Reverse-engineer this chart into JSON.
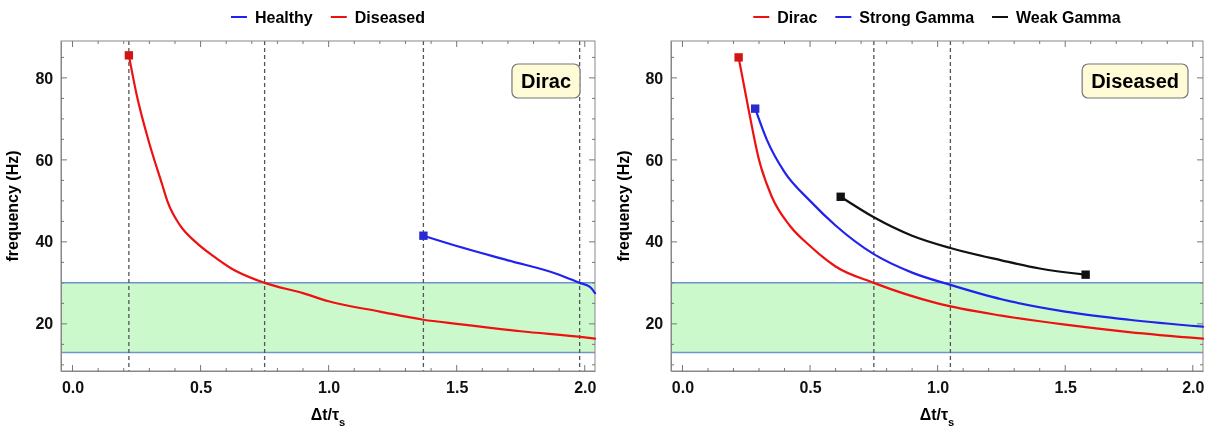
{
  "chart_data": [
    {
      "type": "line",
      "xlabel": "Δt/τ$_{s}$",
      "ylabel": "frequency (Hz)",
      "annotations": [
        "Dirac"
      ],
      "xlim": [
        -0.045,
        2.04
      ],
      "ylim": [
        8.5,
        89
      ],
      "xticks": [
        {
          "value": 0,
          "label": "0.0"
        },
        {
          "value": 0.1,
          "label": null
        },
        {
          "value": 0.2,
          "label": null
        },
        {
          "value": 0.3,
          "label": null
        },
        {
          "value": 0.4,
          "label": null
        },
        {
          "value": 0.5,
          "label": "0.5"
        },
        {
          "value": 0.6,
          "label": null
        },
        {
          "value": 0.7,
          "label": null
        },
        {
          "value": 0.8,
          "label": null
        },
        {
          "value": 0.9,
          "label": null
        },
        {
          "value": 1,
          "label": "1.0"
        },
        {
          "value": 1.1,
          "label": null
        },
        {
          "value": 1.2,
          "label": null
        },
        {
          "value": 1.3,
          "label": null
        },
        {
          "value": 1.4,
          "label": null
        },
        {
          "value": 1.5,
          "label": "1.5"
        },
        {
          "value": 1.6,
          "label": null
        },
        {
          "value": 1.7,
          "label": null
        },
        {
          "value": 1.8,
          "label": null
        },
        {
          "value": 1.9,
          "label": null
        },
        {
          "value": 2,
          "label": "2.0"
        }
      ],
      "yticks": [
        {
          "value": 10,
          "label": null
        },
        {
          "value": 15,
          "label": null
        },
        20,
        {
          "value": 25,
          "label": null
        },
        {
          "value": 30,
          "label": null
        },
        {
          "value": 35,
          "label": null
        },
        40,
        {
          "value": 45,
          "label": null
        },
        {
          "value": 50,
          "label": null
        },
        {
          "value": 55,
          "label": null
        },
        60,
        {
          "value": 65,
          "label": null
        },
        {
          "value": 70,
          "label": null
        },
        {
          "value": 75,
          "label": null
        },
        80,
        {
          "value": 85,
          "label": null
        }
      ],
      "legend": "top",
      "line_style": "solid",
      "bands": [
        {
          "axis": "y",
          "from": 13,
          "to": 30,
          "color": "#ccf9cc"
        }
      ],
      "ref_lines": [
        {
          "axis": "y",
          "value": 13,
          "color": "#6f94cc",
          "line_style": "solid"
        },
        {
          "axis": "y",
          "value": 30,
          "color": "#6f94cc",
          "line_style": "solid"
        },
        {
          "axis": "x",
          "value": 0.22,
          "line_style": "dashed"
        },
        {
          "axis": "x",
          "value": 0.75,
          "line_style": "dashed"
        },
        {
          "axis": "x",
          "value": 1.37,
          "line_style": "dashed"
        },
        {
          "axis": "x",
          "value": 1.98,
          "line_style": "dashed"
        }
      ],
      "series": [
        {
          "name": "Healthy",
          "color": "#2222ee",
          "x": [
            1.37,
            1.5,
            1.7,
            1.9,
            1.98,
            2.02,
            2.04
          ],
          "values": [
            41.5,
            39,
            35.5,
            32,
            30,
            29,
            27.5
          ]
        },
        {
          "name": "Diseased",
          "color": "#ee1111",
          "x": [
            0.22,
            0.25,
            0.3,
            0.35,
            0.37,
            0.42,
            0.48,
            0.55,
            0.62,
            0.75,
            0.9,
            1.0,
            1.2,
            1.37,
            1.5,
            1.75,
            2.0,
            2.04
          ],
          "values": [
            85.5,
            76,
            64,
            54,
            50,
            44,
            40,
            36.5,
            33.5,
            30,
            27.5,
            25.5,
            23,
            21,
            20,
            18.2,
            16.7,
            16.4
          ]
        },
        {
          "type": "scatter",
          "marker": "square",
          "color": "#2a2ad0",
          "x": [
            1.37
          ],
          "values": [
            41.5
          ]
        },
        {
          "type": "scatter",
          "marker": "square",
          "color": "#d01515",
          "x": [
            0.22
          ],
          "values": [
            85.5
          ]
        }
      ]
    },
    {
      "type": "line",
      "xlabel": "Δt/τ$_{s}$",
      "ylabel": "frequency (Hz)",
      "annotations": [
        "Diseased"
      ],
      "xlim": [
        -0.045,
        2.04
      ],
      "ylim": [
        8.5,
        89
      ],
      "xticks": [
        {
          "value": 0,
          "label": "0.0"
        },
        {
          "value": 0.1,
          "label": null
        },
        {
          "value": 0.2,
          "label": null
        },
        {
          "value": 0.3,
          "label": null
        },
        {
          "value": 0.4,
          "label": null
        },
        {
          "value": 0.5,
          "label": "0.5"
        },
        {
          "value": 0.6,
          "label": null
        },
        {
          "value": 0.7,
          "label": null
        },
        {
          "value": 0.8,
          "label": null
        },
        {
          "value": 0.9,
          "label": null
        },
        {
          "value": 1,
          "label": "1.0"
        },
        {
          "value": 1.1,
          "label": null
        },
        {
          "value": 1.2,
          "label": null
        },
        {
          "value": 1.3,
          "label": null
        },
        {
          "value": 1.4,
          "label": null
        },
        {
          "value": 1.5,
          "label": "1.5"
        },
        {
          "value": 1.6,
          "label": null
        },
        {
          "value": 1.7,
          "label": null
        },
        {
          "value": 1.8,
          "label": null
        },
        {
          "value": 1.9,
          "label": null
        },
        {
          "value": 2,
          "label": "2.0"
        }
      ],
      "yticks": [
        {
          "value": 10,
          "label": null
        },
        {
          "value": 15,
          "label": null
        },
        20,
        {
          "value": 25,
          "label": null
        },
        {
          "value": 30,
          "label": null
        },
        {
          "value": 35,
          "label": null
        },
        40,
        {
          "value": 45,
          "label": null
        },
        {
          "value": 50,
          "label": null
        },
        {
          "value": 55,
          "label": null
        },
        60,
        {
          "value": 65,
          "label": null
        },
        {
          "value": 70,
          "label": null
        },
        {
          "value": 75,
          "label": null
        },
        80,
        {
          "value": 85,
          "label": null
        }
      ],
      "legend": "top",
      "line_style": "solid",
      "bands": [
        {
          "axis": "y",
          "from": 13,
          "to": 30,
          "color": "#ccf9cc"
        }
      ],
      "ref_lines": [
        {
          "axis": "y",
          "value": 13,
          "color": "#6f94cc",
          "line_style": "solid"
        },
        {
          "axis": "y",
          "value": 30,
          "color": "#6f94cc",
          "line_style": "solid"
        },
        {
          "axis": "x",
          "value": 0.75,
          "line_style": "dashed"
        },
        {
          "axis": "x",
          "value": 1.05,
          "line_style": "dashed"
        }
      ],
      "series": [
        {
          "name": "Dirac",
          "color": "#ee1111",
          "x": [
            0.22,
            0.26,
            0.3,
            0.35,
            0.42,
            0.5,
            0.6,
            0.75,
            1.0,
            1.25,
            1.5,
            1.75,
            2.04
          ],
          "values": [
            85,
            72,
            60,
            51,
            44,
            39,
            34,
            30,
            25,
            22,
            19.8,
            18,
            16.4
          ]
        },
        {
          "name": "Strong Gamma",
          "color": "#2222ee",
          "x": [
            0.285,
            0.33,
            0.4,
            0.5,
            0.6,
            0.75,
            0.9,
            1.05,
            1.25,
            1.5,
            1.75,
            2.04
          ],
          "values": [
            72.5,
            65,
            57,
            50,
            44,
            37,
            32.5,
            29.5,
            26,
            23,
            21,
            19.3
          ]
        },
        {
          "name": "Weak Gamma",
          "color": "#111111",
          "x": [
            0.62,
            0.75,
            0.9,
            1.05,
            1.25,
            1.4,
            1.58
          ],
          "values": [
            51,
            46,
            41.5,
            38.5,
            35.5,
            33.5,
            32
          ]
        },
        {
          "type": "scatter",
          "marker": "square",
          "color": "#d01515",
          "x": [
            0.22
          ],
          "values": [
            85
          ]
        },
        {
          "type": "scatter",
          "marker": "square",
          "color": "#2a2ad0",
          "x": [
            0.285
          ],
          "values": [
            72.5
          ]
        },
        {
          "type": "scatter",
          "marker": "square",
          "color": "#111111",
          "x": [
            0.62,
            1.58
          ],
          "values": [
            51,
            32
          ]
        }
      ]
    }
  ]
}
